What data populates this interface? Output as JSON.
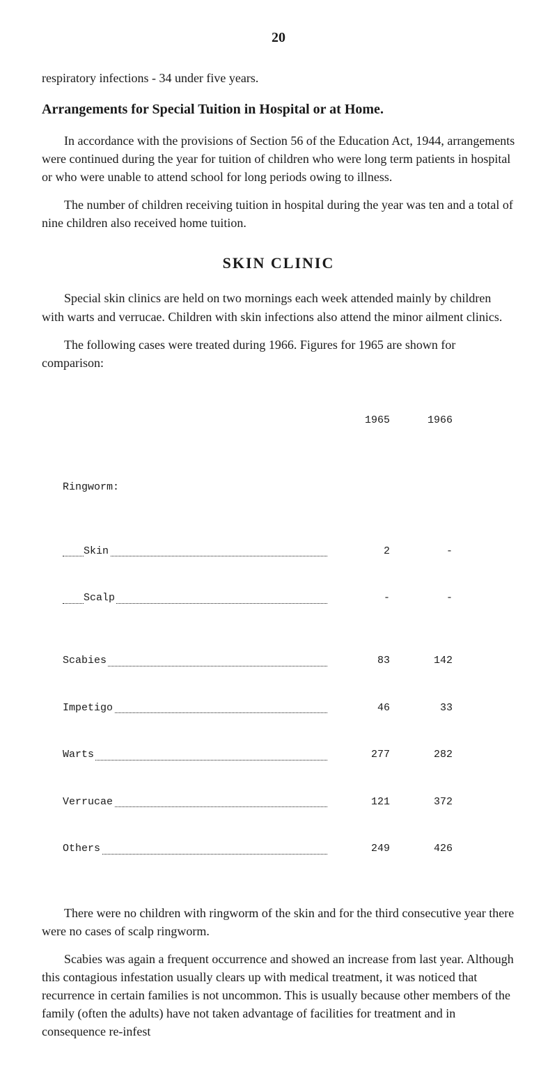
{
  "page_number": "20",
  "intro_line": "respiratory infections - 34 under five years.",
  "section1": {
    "heading": "Arrangements for Special Tuition in Hospital or at Home.",
    "para1": "In accordance with the provisions of Section 56 of the Education Act, 1944, arrangements were continued during the year for tuition of children who were long term patients in hospital or who were unable to attend school for long periods owing to illness.",
    "para2": "The number of children receiving tuition in hospital during the year was ten and a total of nine children also received home tuition."
  },
  "section2": {
    "heading": "SKIN CLINIC",
    "para1": "Special skin clinics are held on two mornings each week attended mainly by children with warts and verrucae. Children with skin infections also attend the minor ailment clinics.",
    "para2": "The following cases were treated during 1966. Figures for 1965 are shown for comparison:"
  },
  "table": {
    "columns": [
      "1965",
      "1966"
    ],
    "section_label": "Ringworm:",
    "sub_rows": [
      {
        "label": "Skin",
        "c1": "2",
        "c2": "-"
      },
      {
        "label": "Scalp",
        "c1": "-",
        "c2": "-"
      }
    ],
    "rows": [
      {
        "label": "Scabies",
        "c1": "83",
        "c2": "142"
      },
      {
        "label": "Impetigo",
        "c1": "46",
        "c2": "33"
      },
      {
        "label": "Warts",
        "c1": "277",
        "c2": "282"
      },
      {
        "label": "Verrucae",
        "c1": "121",
        "c2": "372"
      },
      {
        "label": "Others",
        "c1": "249",
        "c2": "426"
      }
    ],
    "font_family": "Courier New",
    "font_size_pt": 11
  },
  "section3": {
    "para1": "There were no children with ringworm of the skin and for the third consecutive year there were no cases of scalp ringworm.",
    "para2": "Scabies was again a frequent occurrence and showed an increase from last year. Although this contagious infestation usually clears up with medical treatment, it was noticed that recurrence in certain families is not uncommon. This is usually because other members of the family (often the adults) have not taken advantage of facilities for treatment and in consequence re-infest"
  },
  "colors": {
    "text": "#1a1a1a",
    "background": "#ffffff"
  },
  "typography": {
    "body_font": "Georgia / Times-like serif",
    "body_size_pt": 13,
    "heading_weight": "bold",
    "table_font": "monospace typewriter"
  }
}
